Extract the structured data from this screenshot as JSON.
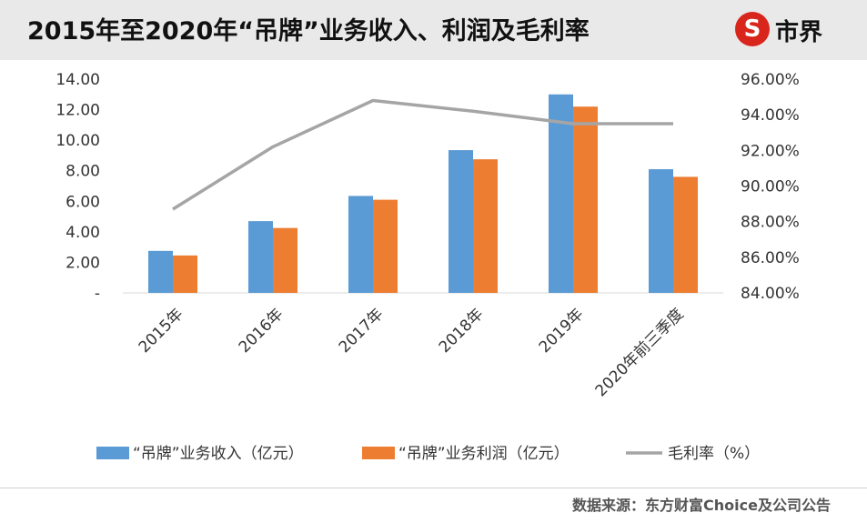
{
  "header": {
    "title": "2015年至2020年“吊牌”业务收入、利润及毛利率",
    "logo_mark": "S",
    "logo_text": "市界"
  },
  "footer": {
    "source": "数据来源：东方财富Choice及公司公告"
  },
  "colors": {
    "revenue": "#5b9bd5",
    "profit": "#ed7d31",
    "margin": "#a5a5a5",
    "brand": "#d9261c"
  },
  "chart_data": {
    "type": "bar",
    "title": "2015年至2020年“吊牌”业务收入、利润及毛利率",
    "categories": [
      "2015年",
      "2016年",
      "2017年",
      "2018年",
      "2019年",
      "2020年前三季度"
    ],
    "series": [
      {
        "name": "“吊牌”业务收入（亿元）",
        "type": "bar",
        "axis": "left",
        "values": [
          2.75,
          4.7,
          6.35,
          9.35,
          13.0,
          8.1
        ]
      },
      {
        "name": "“吊牌”业务利润（亿元）",
        "type": "bar",
        "axis": "left",
        "values": [
          2.45,
          4.25,
          6.1,
          8.75,
          12.2,
          7.6
        ]
      },
      {
        "name": "毛利率（%）",
        "type": "line",
        "axis": "right",
        "values": [
          88.7,
          92.2,
          94.8,
          94.2,
          93.5,
          93.5
        ]
      }
    ],
    "left_axis": {
      "min": 0,
      "max": 14,
      "ticks": [
        "-",
        "2.00",
        "4.00",
        "6.00",
        "8.00",
        "10.00",
        "12.00",
        "14.00"
      ]
    },
    "right_axis": {
      "min": 84,
      "max": 96,
      "ticks": [
        "84.00%",
        "86.00%",
        "88.00%",
        "90.00%",
        "92.00%",
        "94.00%",
        "96.00%"
      ]
    },
    "legend": [
      "“吊牌”业务收入（亿元）",
      "“吊牌”业务利润（亿元）",
      "毛利率（%）"
    ],
    "legend_position": "bottom",
    "grid": false
  }
}
